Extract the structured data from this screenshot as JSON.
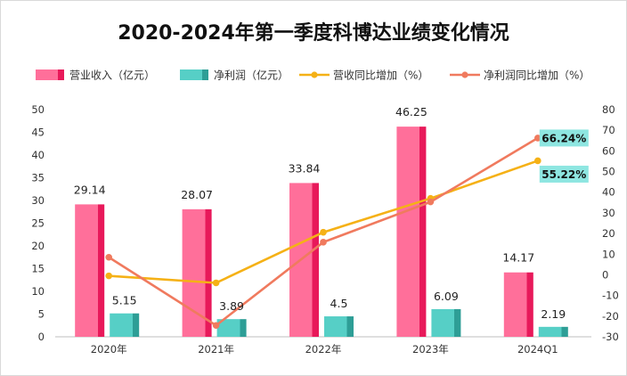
{
  "chart_data": {
    "type": "bar",
    "title": "2020-2024年第一季度科博达业绩变化情况",
    "categories": [
      "2020年",
      "2021年",
      "2022年",
      "2023年",
      "2024Q1"
    ],
    "series": [
      {
        "name": "营业收入（亿元）",
        "kind": "bar",
        "axis": "left",
        "values": [
          29.14,
          28.07,
          33.84,
          46.25,
          14.17
        ],
        "color": "#f0457e"
      },
      {
        "name": "净利润（亿元）",
        "kind": "bar",
        "axis": "left",
        "values": [
          5.15,
          3.89,
          4.5,
          6.09,
          2.19
        ],
        "color": "#3dbfb6"
      },
      {
        "name": "营收同比增加（%）",
        "kind": "line",
        "axis": "right",
        "values": [
          -0.5,
          -3.9,
          20.6,
          37.0,
          55.22
        ],
        "color": "#f5b116"
      },
      {
        "name": "净利润同比增加（%）",
        "kind": "line",
        "axis": "right",
        "values": [
          8.5,
          -24.5,
          15.8,
          35.3,
          66.24
        ],
        "color": "#f07a5e"
      }
    ],
    "bar_labels": {
      "revenue": [
        "29.14",
        "28.07",
        "33.84",
        "46.25",
        "14.17"
      ],
      "profit": [
        "5.15",
        "3.89",
        "4.5",
        "6.09",
        "2.19"
      ]
    },
    "callouts": [
      "66.24%",
      "55.22%"
    ],
    "left_axis": {
      "ylim": [
        0,
        50
      ],
      "ticks": [
        "0",
        "5",
        "10",
        "15",
        "20",
        "25",
        "30",
        "35",
        "40",
        "45",
        "50"
      ]
    },
    "right_axis": {
      "ylim": [
        -30,
        80
      ],
      "ticks": [
        "-30",
        "-20",
        "-10",
        "0",
        "10",
        "20",
        "30",
        "40",
        "50",
        "60",
        "70",
        "80"
      ]
    },
    "grid": false,
    "legend": "top"
  },
  "colors": {
    "revenue_light": "#ff6f9a",
    "revenue_dark": "#e8195a",
    "profit_light": "#56cfc6",
    "profit_dark": "#2e9e96",
    "callout_bg": "#8ee6e1"
  }
}
